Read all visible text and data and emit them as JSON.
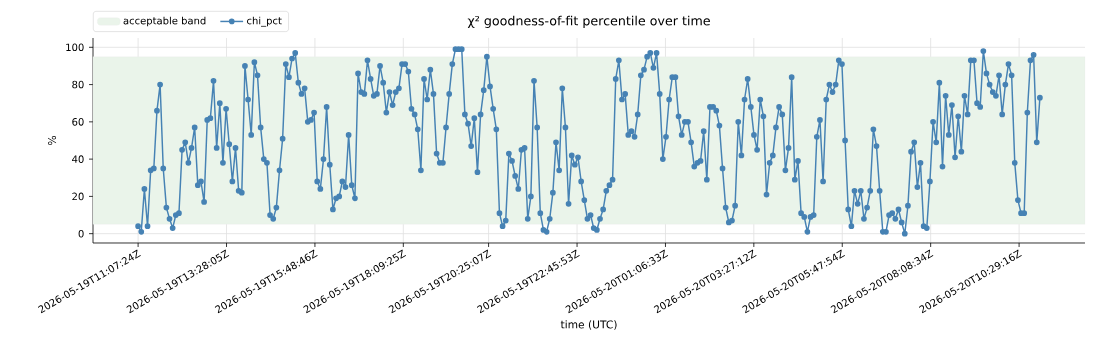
{
  "chart_data": {
    "type": "line",
    "title": "χ² goodness-of-fit percentile over time",
    "xlabel": "time (UTC)",
    "ylabel": "%",
    "x": [
      "2026-05-19T11:07:24",
      "2026-05-19T11:12:24",
      "2026-05-19T11:17:24",
      "2026-05-19T11:22:24",
      "2026-05-19T11:27:24",
      "2026-05-19T11:32:24",
      "2026-05-19T11:37:24",
      "2026-05-19T11:42:24",
      "2026-05-19T11:47:24",
      "2026-05-19T11:52:24",
      "2026-05-19T11:57:24",
      "2026-05-19T12:02:24",
      "2026-05-19T12:07:24",
      "2026-05-19T12:12:24",
      "2026-05-19T12:17:24",
      "2026-05-19T12:22:24",
      "2026-05-19T12:27:24",
      "2026-05-19T12:32:24",
      "2026-05-19T12:37:24",
      "2026-05-19T12:42:24",
      "2026-05-19T12:47:24",
      "2026-05-19T12:52:24",
      "2026-05-19T12:57:24",
      "2026-05-19T13:02:24",
      "2026-05-19T13:07:24",
      "2026-05-19T13:12:24",
      "2026-05-19T13:17:24",
      "2026-05-19T13:22:24",
      "2026-05-19T13:27:24",
      "2026-05-19T13:32:24",
      "2026-05-19T13:37:24",
      "2026-05-19T13:42:24",
      "2026-05-19T13:47:24",
      "2026-05-19T13:52:24",
      "2026-05-19T13:57:24",
      "2026-05-19T14:02:24",
      "2026-05-19T14:07:24",
      "2026-05-19T14:12:24",
      "2026-05-19T14:17:24",
      "2026-05-19T14:22:24",
      "2026-05-19T14:27:24",
      "2026-05-19T14:32:24",
      "2026-05-19T14:37:24",
      "2026-05-19T14:42:24",
      "2026-05-19T14:47:24",
      "2026-05-19T14:52:24",
      "2026-05-19T14:57:24",
      "2026-05-19T15:02:24",
      "2026-05-19T15:07:24",
      "2026-05-19T15:12:24",
      "2026-05-19T15:17:24",
      "2026-05-19T15:22:24",
      "2026-05-19T15:27:24",
      "2026-05-19T15:32:24",
      "2026-05-19T15:37:24",
      "2026-05-19T15:42:24",
      "2026-05-19T15:47:24",
      "2026-05-19T15:52:24",
      "2026-05-19T15:57:24",
      "2026-05-19T16:02:24",
      "2026-05-19T16:07:24",
      "2026-05-19T16:12:24",
      "2026-05-19T16:17:24",
      "2026-05-19T16:22:24",
      "2026-05-19T16:27:24",
      "2026-05-19T16:32:24",
      "2026-05-19T16:37:24",
      "2026-05-19T16:42:24",
      "2026-05-19T16:47:24",
      "2026-05-19T16:52:24",
      "2026-05-19T16:57:24",
      "2026-05-19T17:02:24",
      "2026-05-19T17:07:24",
      "2026-05-19T17:12:24",
      "2026-05-19T17:17:24",
      "2026-05-19T17:22:24",
      "2026-05-19T17:27:24",
      "2026-05-19T17:32:24",
      "2026-05-19T17:37:24",
      "2026-05-19T17:42:24",
      "2026-05-19T17:47:24",
      "2026-05-19T17:52:24",
      "2026-05-19T17:57:24",
      "2026-05-19T18:02:24",
      "2026-05-19T18:07:24",
      "2026-05-19T18:12:24",
      "2026-05-19T18:17:24",
      "2026-05-19T18:22:24",
      "2026-05-19T18:27:24",
      "2026-05-19T18:32:24",
      "2026-05-19T18:37:24",
      "2026-05-19T18:42:24",
      "2026-05-19T18:47:24",
      "2026-05-19T18:52:24",
      "2026-05-19T18:57:24",
      "2026-05-19T19:02:24",
      "2026-05-19T19:07:24",
      "2026-05-19T19:12:24",
      "2026-05-19T19:17:24",
      "2026-05-19T19:22:24",
      "2026-05-19T19:27:24",
      "2026-05-19T19:32:24",
      "2026-05-19T19:37:24",
      "2026-05-19T19:42:24",
      "2026-05-19T19:47:24",
      "2026-05-19T19:52:24",
      "2026-05-19T19:57:24",
      "2026-05-19T20:02:24",
      "2026-05-19T20:07:24",
      "2026-05-19T20:12:24",
      "2026-05-19T20:17:24",
      "2026-05-19T20:22:24",
      "2026-05-19T20:27:24",
      "2026-05-19T20:32:24",
      "2026-05-19T20:37:24",
      "2026-05-19T20:42:24",
      "2026-05-19T20:47:24",
      "2026-05-19T20:52:24",
      "2026-05-19T20:57:24",
      "2026-05-19T21:02:24",
      "2026-05-19T21:07:24",
      "2026-05-19T21:12:24",
      "2026-05-19T21:17:24",
      "2026-05-19T21:22:24",
      "2026-05-19T21:27:24",
      "2026-05-19T21:32:24",
      "2026-05-19T21:37:24",
      "2026-05-19T21:42:24",
      "2026-05-19T21:47:24",
      "2026-05-19T21:52:24",
      "2026-05-19T21:57:24",
      "2026-05-19T22:02:24",
      "2026-05-19T22:07:24",
      "2026-05-19T22:12:24",
      "2026-05-19T22:17:24",
      "2026-05-19T22:22:24",
      "2026-05-19T22:27:24",
      "2026-05-19T22:32:24",
      "2026-05-19T22:37:24",
      "2026-05-19T22:42:24",
      "2026-05-19T22:47:24",
      "2026-05-19T22:52:24",
      "2026-05-19T22:57:24",
      "2026-05-19T23:02:24",
      "2026-05-19T23:07:24",
      "2026-05-19T23:12:24",
      "2026-05-19T23:17:24",
      "2026-05-19T23:22:24",
      "2026-05-19T23:27:24",
      "2026-05-19T23:32:24",
      "2026-05-19T23:37:24",
      "2026-05-19T23:42:24",
      "2026-05-19T23:47:24",
      "2026-05-19T23:52:24",
      "2026-05-19T23:57:24",
      "2026-05-20T00:02:24",
      "2026-05-20T00:07:24",
      "2026-05-20T00:12:24",
      "2026-05-20T00:17:24",
      "2026-05-20T00:22:24",
      "2026-05-20T00:27:24",
      "2026-05-20T00:32:24",
      "2026-05-20T00:37:24",
      "2026-05-20T00:42:24",
      "2026-05-20T00:47:24",
      "2026-05-20T00:52:24",
      "2026-05-20T00:57:24",
      "2026-05-20T01:02:24",
      "2026-05-20T01:07:24",
      "2026-05-20T01:12:24",
      "2026-05-20T01:17:24",
      "2026-05-20T01:22:24",
      "2026-05-20T01:27:24",
      "2026-05-20T01:32:24",
      "2026-05-20T01:37:24",
      "2026-05-20T01:42:24",
      "2026-05-20T01:47:24",
      "2026-05-20T01:52:24",
      "2026-05-20T01:57:24",
      "2026-05-20T02:02:24",
      "2026-05-20T02:07:24",
      "2026-05-20T02:12:24",
      "2026-05-20T02:17:24",
      "2026-05-20T02:22:24",
      "2026-05-20T02:27:24",
      "2026-05-20T02:32:24",
      "2026-05-20T02:37:24",
      "2026-05-20T02:42:24",
      "2026-05-20T02:47:24",
      "2026-05-20T02:52:24",
      "2026-05-20T02:57:24",
      "2026-05-20T03:02:24",
      "2026-05-20T03:07:24",
      "2026-05-20T03:12:24",
      "2026-05-20T03:17:24",
      "2026-05-20T03:22:24",
      "2026-05-20T03:27:24",
      "2026-05-20T03:32:24",
      "2026-05-20T03:37:24",
      "2026-05-20T03:42:24",
      "2026-05-20T03:47:24",
      "2026-05-20T03:52:24",
      "2026-05-20T03:57:24",
      "2026-05-20T04:02:24",
      "2026-05-20T04:07:24",
      "2026-05-20T04:12:24",
      "2026-05-20T04:17:24",
      "2026-05-20T04:22:24",
      "2026-05-20T04:27:24",
      "2026-05-20T04:32:24",
      "2026-05-20T04:37:24",
      "2026-05-20T04:42:24",
      "2026-05-20T04:47:24",
      "2026-05-20T04:52:24",
      "2026-05-20T04:57:24",
      "2026-05-20T05:02:24",
      "2026-05-20T05:07:24",
      "2026-05-20T05:12:24",
      "2026-05-20T05:17:24",
      "2026-05-20T05:22:24",
      "2026-05-20T05:27:24",
      "2026-05-20T05:32:24",
      "2026-05-20T05:37:24",
      "2026-05-20T05:42:24",
      "2026-05-20T05:47:24",
      "2026-05-20T05:52:24",
      "2026-05-20T05:57:24",
      "2026-05-20T06:02:24",
      "2026-05-20T06:07:24",
      "2026-05-20T06:12:24",
      "2026-05-20T06:17:24",
      "2026-05-20T06:22:24",
      "2026-05-20T06:27:24",
      "2026-05-20T06:32:24",
      "2026-05-20T06:37:24",
      "2026-05-20T06:42:24",
      "2026-05-20T06:47:24",
      "2026-05-20T06:52:24",
      "2026-05-20T06:57:24",
      "2026-05-20T07:02:24",
      "2026-05-20T07:07:24",
      "2026-05-20T07:12:24",
      "2026-05-20T07:17:24",
      "2026-05-20T07:22:24",
      "2026-05-20T07:27:24",
      "2026-05-20T07:32:24",
      "2026-05-20T07:37:24",
      "2026-05-20T07:42:24",
      "2026-05-20T07:47:24",
      "2026-05-20T07:52:24",
      "2026-05-20T07:57:24",
      "2026-05-20T08:02:24",
      "2026-05-20T08:07:24",
      "2026-05-20T08:12:24",
      "2026-05-20T08:17:24",
      "2026-05-20T08:22:24",
      "2026-05-20T08:27:24",
      "2026-05-20T08:32:24",
      "2026-05-20T08:37:24",
      "2026-05-20T08:42:24",
      "2026-05-20T08:47:24",
      "2026-05-20T08:52:24",
      "2026-05-20T08:57:24",
      "2026-05-20T09:02:24",
      "2026-05-20T09:07:24",
      "2026-05-20T09:12:24",
      "2026-05-20T09:17:24",
      "2026-05-20T09:22:24",
      "2026-05-20T09:27:24",
      "2026-05-20T09:32:24",
      "2026-05-20T09:37:24",
      "2026-05-20T09:42:24",
      "2026-05-20T09:47:24",
      "2026-05-20T09:52:24",
      "2026-05-20T09:57:24",
      "2026-05-20T10:02:24",
      "2026-05-20T10:07:24",
      "2026-05-20T10:12:24",
      "2026-05-20T10:17:24",
      "2026-05-20T10:22:24",
      "2026-05-20T10:27:24",
      "2026-05-20T10:32:24",
      "2026-05-20T10:37:24",
      "2026-05-20T10:42:24",
      "2026-05-20T10:47:24",
      "2026-05-20T10:52:24",
      "2026-05-20T10:57:24",
      "2026-05-20T11:02:24"
    ],
    "series": [
      {
        "name": "chi_pct",
        "color": "#4682b4",
        "values": [
          4,
          1,
          24,
          4,
          34,
          35,
          66,
          80,
          35,
          14,
          8,
          3,
          10,
          11,
          45,
          49,
          38,
          46,
          57,
          26,
          28,
          17,
          61,
          62,
          82,
          46,
          70,
          38,
          67,
          48,
          28,
          46,
          23,
          22,
          90,
          72,
          53,
          92,
          85,
          57,
          40,
          38,
          10,
          8,
          14,
          34,
          51,
          91,
          84,
          94,
          97,
          81,
          75,
          78,
          60,
          61,
          65,
          28,
          24,
          40,
          68,
          37,
          13,
          19,
          20,
          28,
          25,
          53,
          26,
          19,
          86,
          76,
          75,
          93,
          83,
          74,
          75,
          90,
          81,
          65,
          76,
          69,
          76,
          78,
          91,
          91,
          87,
          67,
          64,
          56,
          34,
          83,
          72,
          88,
          75,
          43,
          38,
          38,
          57,
          75,
          91,
          99,
          99,
          99,
          64,
          59,
          47,
          62,
          33,
          64,
          77,
          95,
          79,
          67,
          56,
          11,
          4,
          7,
          43,
          39,
          31,
          24,
          45,
          46,
          8,
          20,
          82,
          57,
          11,
          2,
          1,
          8,
          22,
          49,
          34,
          78,
          57,
          16,
          42,
          37,
          41,
          28,
          18,
          8,
          10,
          3,
          2,
          8,
          13,
          23,
          26,
          29,
          83,
          93,
          72,
          75,
          53,
          55,
          52,
          64,
          85,
          88,
          95,
          97,
          89,
          97,
          75,
          40,
          52,
          72,
          84,
          84,
          63,
          53,
          60,
          60,
          49,
          36,
          38,
          39,
          55,
          29,
          68,
          68,
          66,
          58,
          35,
          14,
          6,
          7,
          15,
          60,
          42,
          72,
          83,
          68,
          53,
          45,
          72,
          63,
          21,
          38,
          42,
          57,
          68,
          64,
          34,
          46,
          84,
          29,
          39,
          11,
          9,
          1,
          9,
          10,
          52,
          61,
          28,
          72,
          80,
          76,
          80,
          93,
          91,
          50,
          13,
          4,
          23,
          16,
          23,
          8,
          14,
          23,
          56,
          47,
          23,
          1,
          1,
          10,
          11,
          8,
          13,
          6,
          0,
          15,
          44,
          49,
          25,
          38,
          4,
          3,
          28,
          60,
          49,
          81,
          36,
          74,
          53,
          69,
          41,
          63,
          44,
          74,
          64,
          93,
          93,
          70,
          68,
          98,
          86,
          80,
          76,
          74,
          85,
          64,
          80,
          91,
          85,
          38,
          18,
          11,
          11,
          65,
          93,
          96,
          49,
          73
        ]
      }
    ],
    "xlim": [
      "2026-05-19T09:55:39",
      "2026-05-20T12:14:09"
    ],
    "xticks": [
      {
        "value": "2026-05-19T11:07:24",
        "label": "2026-05-19T11:07:24Z"
      },
      {
        "value": "2026-05-19T13:28:05",
        "label": "2026-05-19T13:28:05Z"
      },
      {
        "value": "2026-05-19T15:48:46",
        "label": "2026-05-19T15:48:46Z"
      },
      {
        "value": "2026-05-19T18:09:25",
        "label": "2026-05-19T18:09:25Z"
      },
      {
        "value": "2026-05-19T20:25:07",
        "label": "2026-05-19T20:25:07Z"
      },
      {
        "value": "2026-05-19T22:45:53",
        "label": "2026-05-19T22:45:53Z"
      },
      {
        "value": "2026-05-20T01:06:33",
        "label": "2026-05-20T01:06:33Z"
      },
      {
        "value": "2026-05-20T03:27:12",
        "label": "2026-05-20T03:27:12Z"
      },
      {
        "value": "2026-05-20T05:47:54",
        "label": "2026-05-20T05:47:54Z"
      },
      {
        "value": "2026-05-20T08:08:34",
        "label": "2026-05-20T08:08:34Z"
      },
      {
        "value": "2026-05-20T10:29:16",
        "label": "2026-05-20T10:29:16Z"
      }
    ],
    "ylim": [
      -5,
      105
    ],
    "yticks": [
      0,
      20,
      40,
      60,
      80,
      100
    ],
    "bands": [
      {
        "axis": "y",
        "from": 5,
        "to": 95,
        "label": "acceptable band",
        "color": "#eaf4ea"
      }
    ],
    "grid": true,
    "legend": "top left",
    "marker": "circle",
    "line_style": "solid"
  }
}
